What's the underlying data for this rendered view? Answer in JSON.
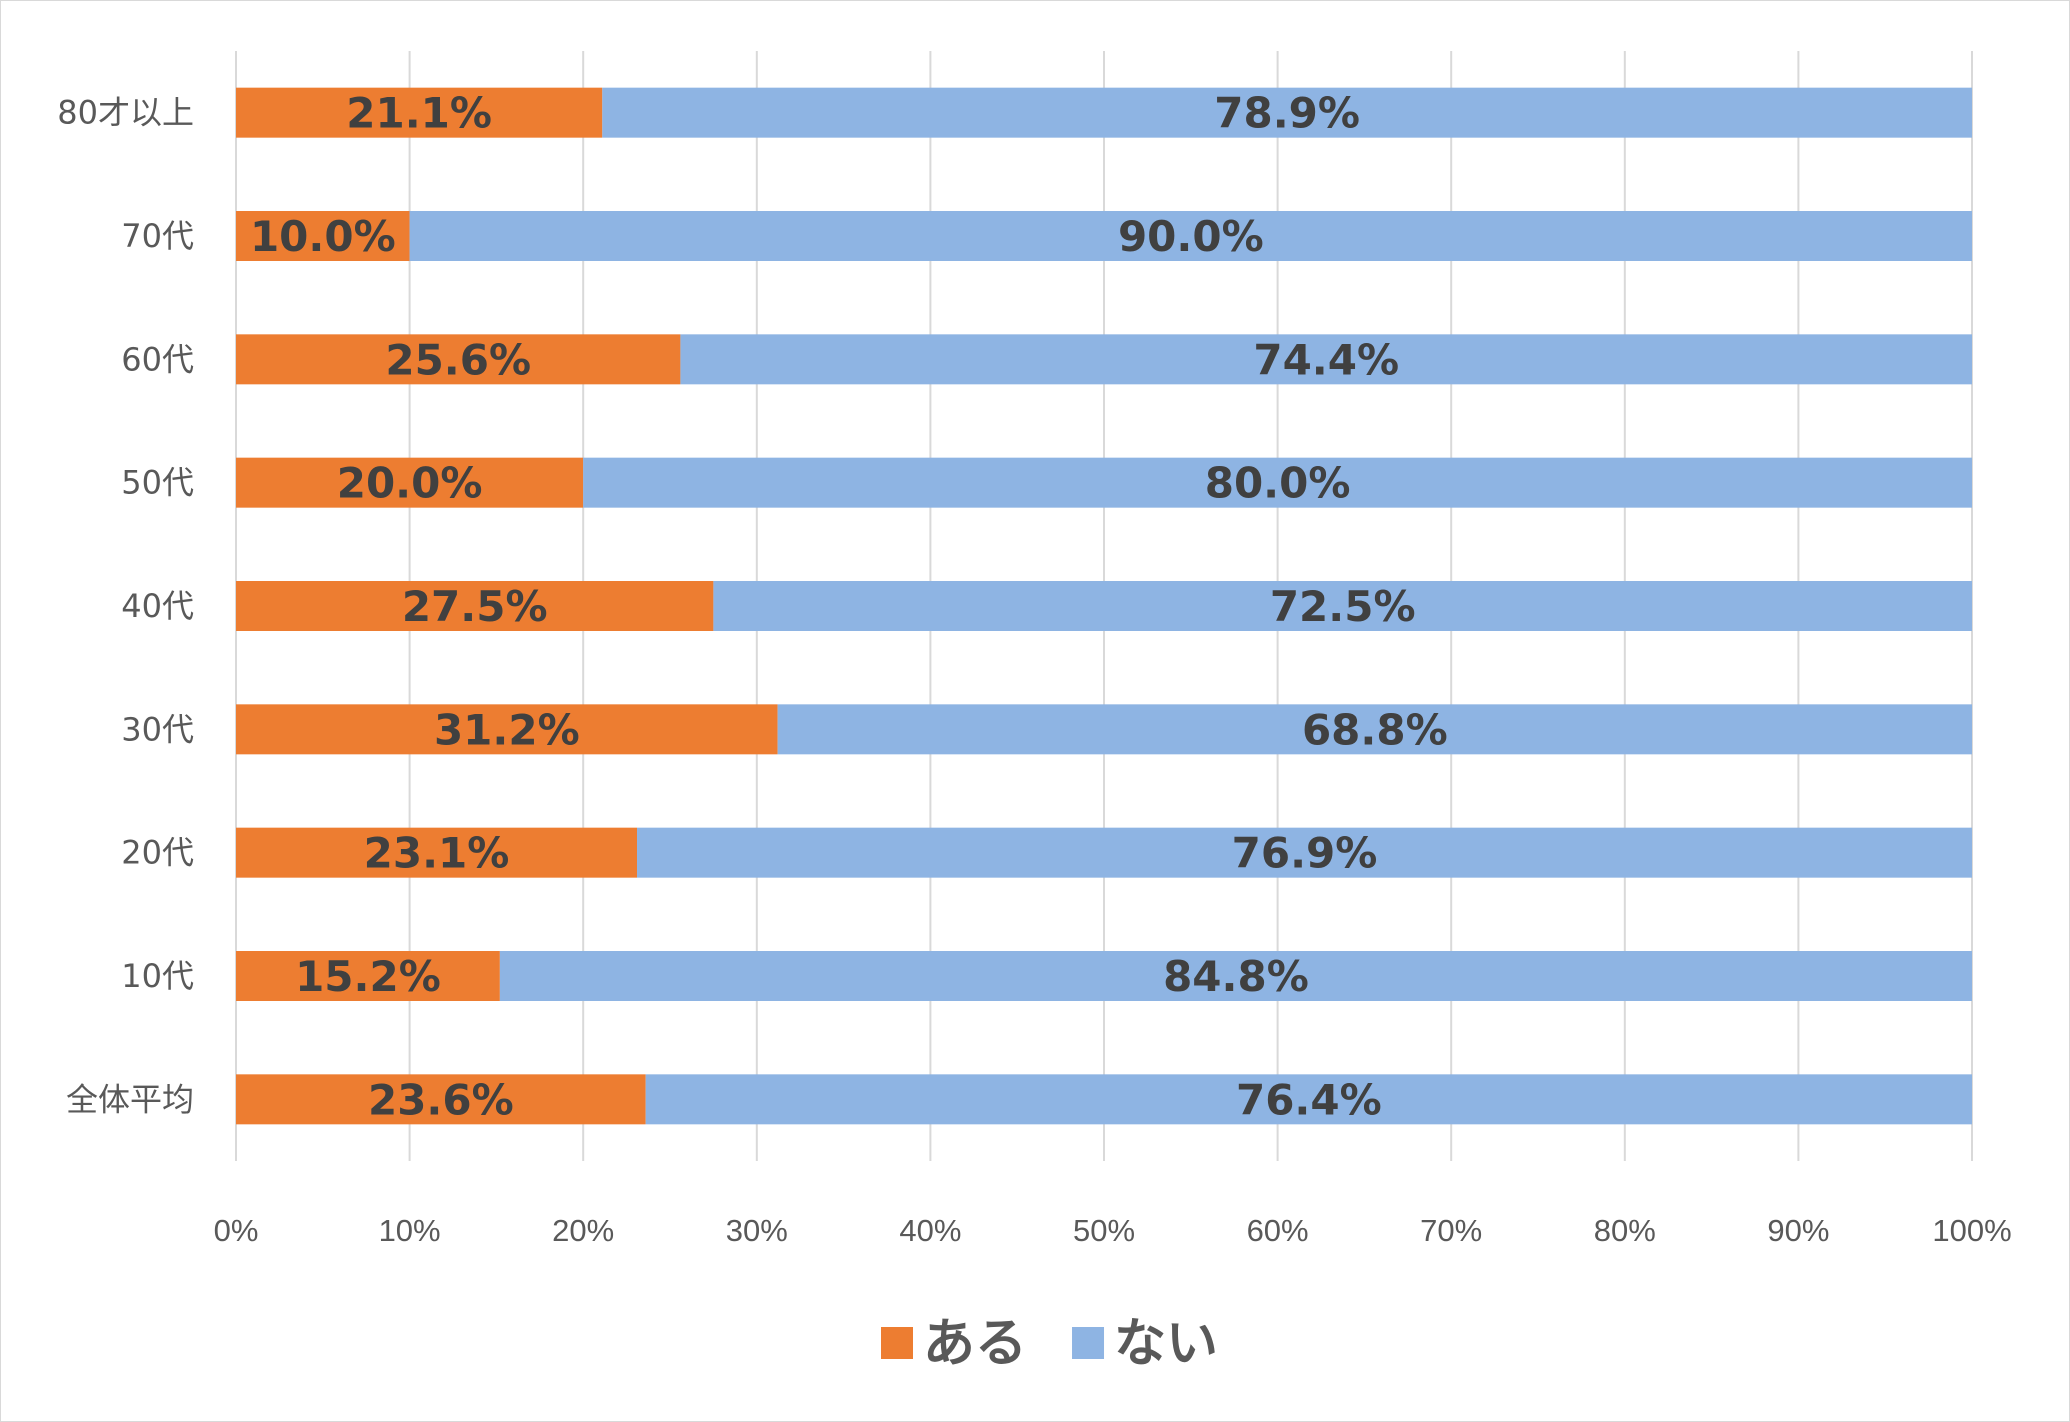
{
  "chart_data": {
    "type": "bar",
    "orientation": "horizontal",
    "stacked": "percent",
    "categories": [
      "80才以上",
      "70代",
      "60代",
      "50代",
      "40代",
      "30代",
      "20代",
      "10代",
      "全体平均"
    ],
    "series": [
      {
        "name": "ある",
        "color": "#ED7D31",
        "values": [
          21.1,
          10.0,
          25.6,
          20.0,
          27.5,
          31.2,
          23.1,
          15.2,
          23.6
        ],
        "labels": [
          "21.1%",
          "10.0%",
          "25.6%",
          "20.0%",
          "27.5%",
          "31.2%",
          "23.1%",
          "15.2%",
          "23.6%"
        ]
      },
      {
        "name": "ない",
        "color": "#8EB4E3",
        "values": [
          78.9,
          90.0,
          74.4,
          80.0,
          72.5,
          68.8,
          76.9,
          84.8,
          76.4
        ],
        "labels": [
          "78.9%",
          "90.0%",
          "74.4%",
          "80.0%",
          "72.5%",
          "68.8%",
          "76.9%",
          "84.8%",
          "76.4%"
        ]
      }
    ],
    "x_ticks": [
      "0%",
      "10%",
      "20%",
      "30%",
      "40%",
      "50%",
      "60%",
      "70%",
      "80%",
      "90%",
      "100%"
    ],
    "xlim": [
      0,
      100
    ],
    "grid": true,
    "legend_position": "bottom"
  }
}
